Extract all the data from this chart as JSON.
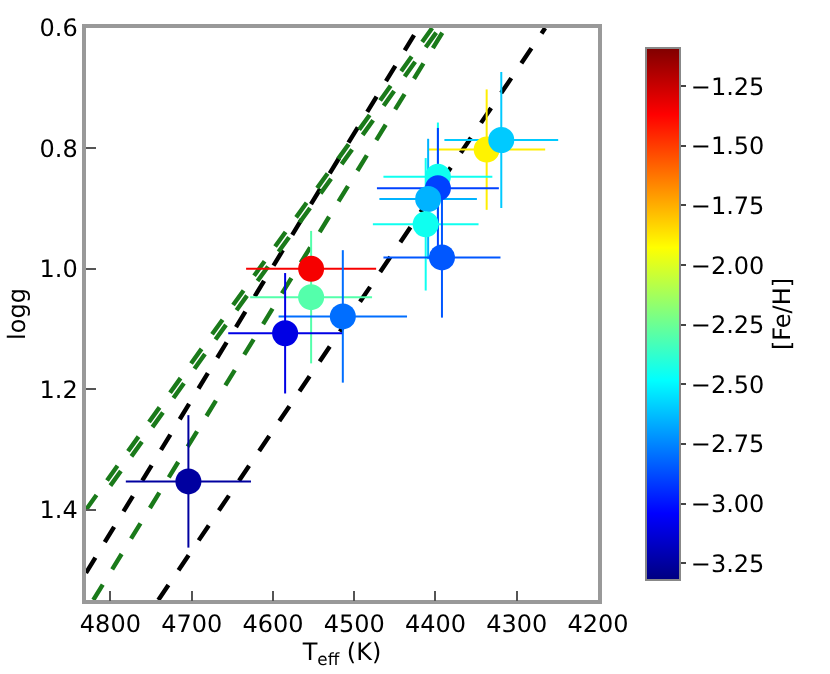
{
  "chart_data": {
    "type": "scatter",
    "xlabel": "T$_{eff}$ (K)",
    "ylabel": "logg",
    "clabel": "[Fe/H]",
    "xlim": [
      4830,
      4200
    ],
    "xticks": [
      4800,
      4700,
      4600,
      4500,
      4400,
      4300,
      4200
    ],
    "ylim": [
      1.55,
      0.6
    ],
    "yticks": [
      {
        "value": 0.6,
        "label": "0.6"
      },
      {
        "value": 0.8,
        "label": "0.8"
      },
      {
        "value": 1.0,
        "label": "1.0"
      },
      {
        "value": 1.2,
        "label": "1.2"
      },
      {
        "value": 1.4,
        "label": "1.4"
      }
    ],
    "clim": [
      -3.32,
      -1.09
    ],
    "cticks": [
      {
        "value": -1.25,
        "label": "−1.25"
      },
      {
        "value": -1.5,
        "label": "−1.50"
      },
      {
        "value": -1.75,
        "label": "−1.75"
      },
      {
        "value": -2.0,
        "label": "−2.00"
      },
      {
        "value": -2.25,
        "label": "−2.25"
      },
      {
        "value": -2.5,
        "label": "−2.50"
      },
      {
        "value": -2.75,
        "label": "−2.75"
      },
      {
        "value": -3.0,
        "label": "−3.00"
      },
      {
        "value": -3.25,
        "label": "−3.25"
      }
    ],
    "grid": false,
    "series": [
      {
        "type": "line",
        "marker": "none",
        "color": "#000000",
        "line_style": "dashed",
        "x": [
          4741,
          4265
        ],
        "values": [
          1.55,
          0.6
        ]
      },
      {
        "type": "line",
        "marker": "none",
        "color": "#000000",
        "line_style": "dashed",
        "x": [
          4830,
          4421
        ],
        "values": [
          1.505,
          0.6
        ]
      },
      {
        "type": "line",
        "marker": "none",
        "color": "#1a7a1a",
        "line_style": "dashed",
        "x": [
          4830,
          4404
        ],
        "values": [
          1.4,
          0.6
        ]
      },
      {
        "type": "line",
        "marker": "none",
        "color": "#1a7a1a",
        "line_style": "dashed",
        "x": [
          4800,
          4395
        ],
        "values": [
          1.36,
          0.6
        ]
      },
      {
        "type": "line",
        "marker": "none",
        "color": "#1a7a1a",
        "line_style": "dashed",
        "x": [
          4821,
          4388
        ],
        "values": [
          1.55,
          0.6
        ]
      },
      {
        "marker": "circle",
        "x": [
          4553,
          4553,
          4514,
          4585,
          4704,
          4337,
          4319,
          4397,
          4397,
          4409,
          4412,
          4392
        ],
        "values": [
          1.0,
          1.047,
          1.079,
          1.107,
          1.353,
          0.802,
          0.786,
          0.847,
          0.866,
          0.884,
          0.926,
          0.981
        ],
        "cvalues": [
          -1.35,
          -2.3,
          -2.8,
          -3.1,
          -3.25,
          -1.9,
          -2.6,
          -2.45,
          -2.9,
          -2.65,
          -2.45,
          -2.85
        ],
        "colors": [
          "#f70000",
          "#54ffab",
          "#006eff",
          "#0000e5",
          "#0000a0",
          "#ffee00",
          "#00caff",
          "#0ffff0",
          "#0041ff",
          "#00b3ff",
          "#0ffff0",
          "#0057ff"
        ],
        "xerrors": [
          80,
          75,
          79,
          70,
          77,
          72,
          70,
          67,
          75,
          60,
          65,
          72
        ],
        "errors": [
          null,
          0.11,
          0.11,
          0.1,
          0.11,
          0.1,
          0.113,
          0.09,
          0.1,
          0.1,
          0.11,
          0.1
        ]
      }
    ]
  }
}
